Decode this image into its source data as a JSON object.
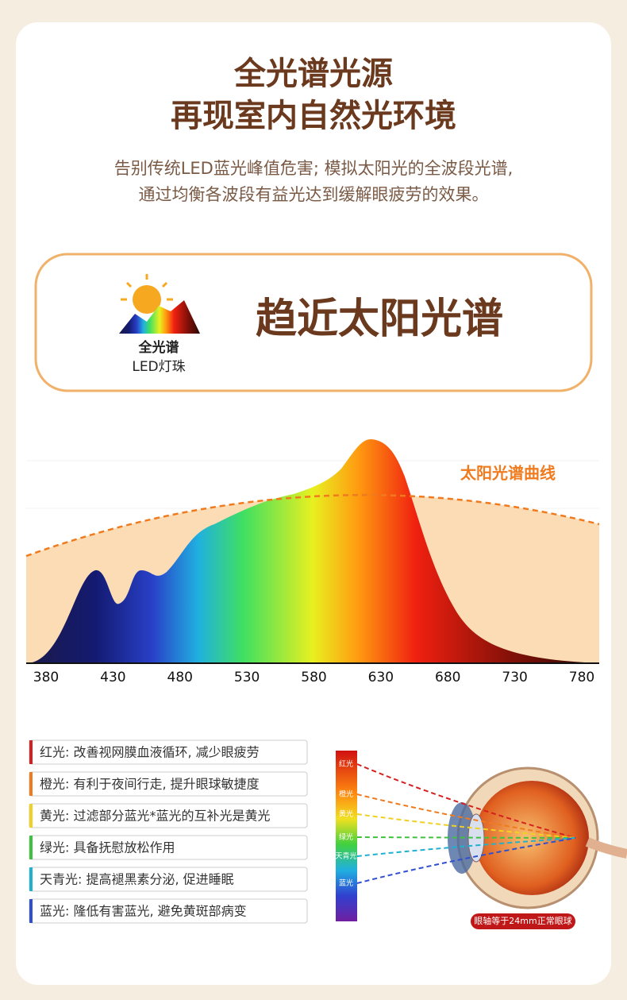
{
  "header": {
    "title": [
      "全光谱光源",
      "再现室内自然光环境"
    ],
    "subtitle": [
      "告别传统LED蓝光峰值危害; 模拟太阳光的全波段光谱,",
      "通过均衡各波段有益光达到缓解眼疲劳的效果。"
    ]
  },
  "badge": {
    "icon_label": [
      "全光谱",
      "LED灯珠"
    ],
    "text": "趋近太阳光谱"
  },
  "spectrum": {
    "curve_label": "太阳光谱曲线",
    "ticks": [
      380,
      430,
      480,
      530,
      580,
      630,
      680,
      730,
      780
    ]
  },
  "legend": [
    "红光: 改善视网膜血液循环, 减少眼疲劳",
    "橙光: 有利于夜间行走, 提升眼球敏捷度",
    "黄光: 过滤部分蓝光*蓝光的互补光是黄光",
    "绿光: 具备抚慰放松作用",
    "天青光: 提高褪黑素分泌, 促进睡眠",
    "蓝光: 隆低有害蓝光, 避免黄斑部病变"
  ],
  "eye": {
    "labels": [
      "红光",
      "橙光",
      "黄光",
      "绿光",
      "天青光",
      "蓝光"
    ],
    "caption": "眼轴等于24mm正常眼球"
  }
}
